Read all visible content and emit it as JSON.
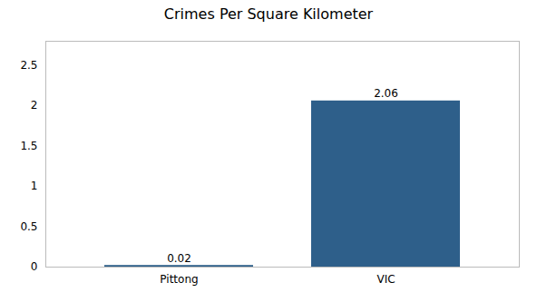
{
  "chart_data": {
    "type": "bar",
    "title": "Crimes Per Square Kilometer",
    "categories": [
      "Pittong",
      "VIC"
    ],
    "values": [
      0.02,
      2.06
    ],
    "color": "#2e5f8a",
    "ylim": [
      0,
      2.8
    ],
    "yticks": [
      0,
      0.5,
      1,
      1.5,
      2,
      2.5
    ],
    "grid": false,
    "data_labels": true
  }
}
